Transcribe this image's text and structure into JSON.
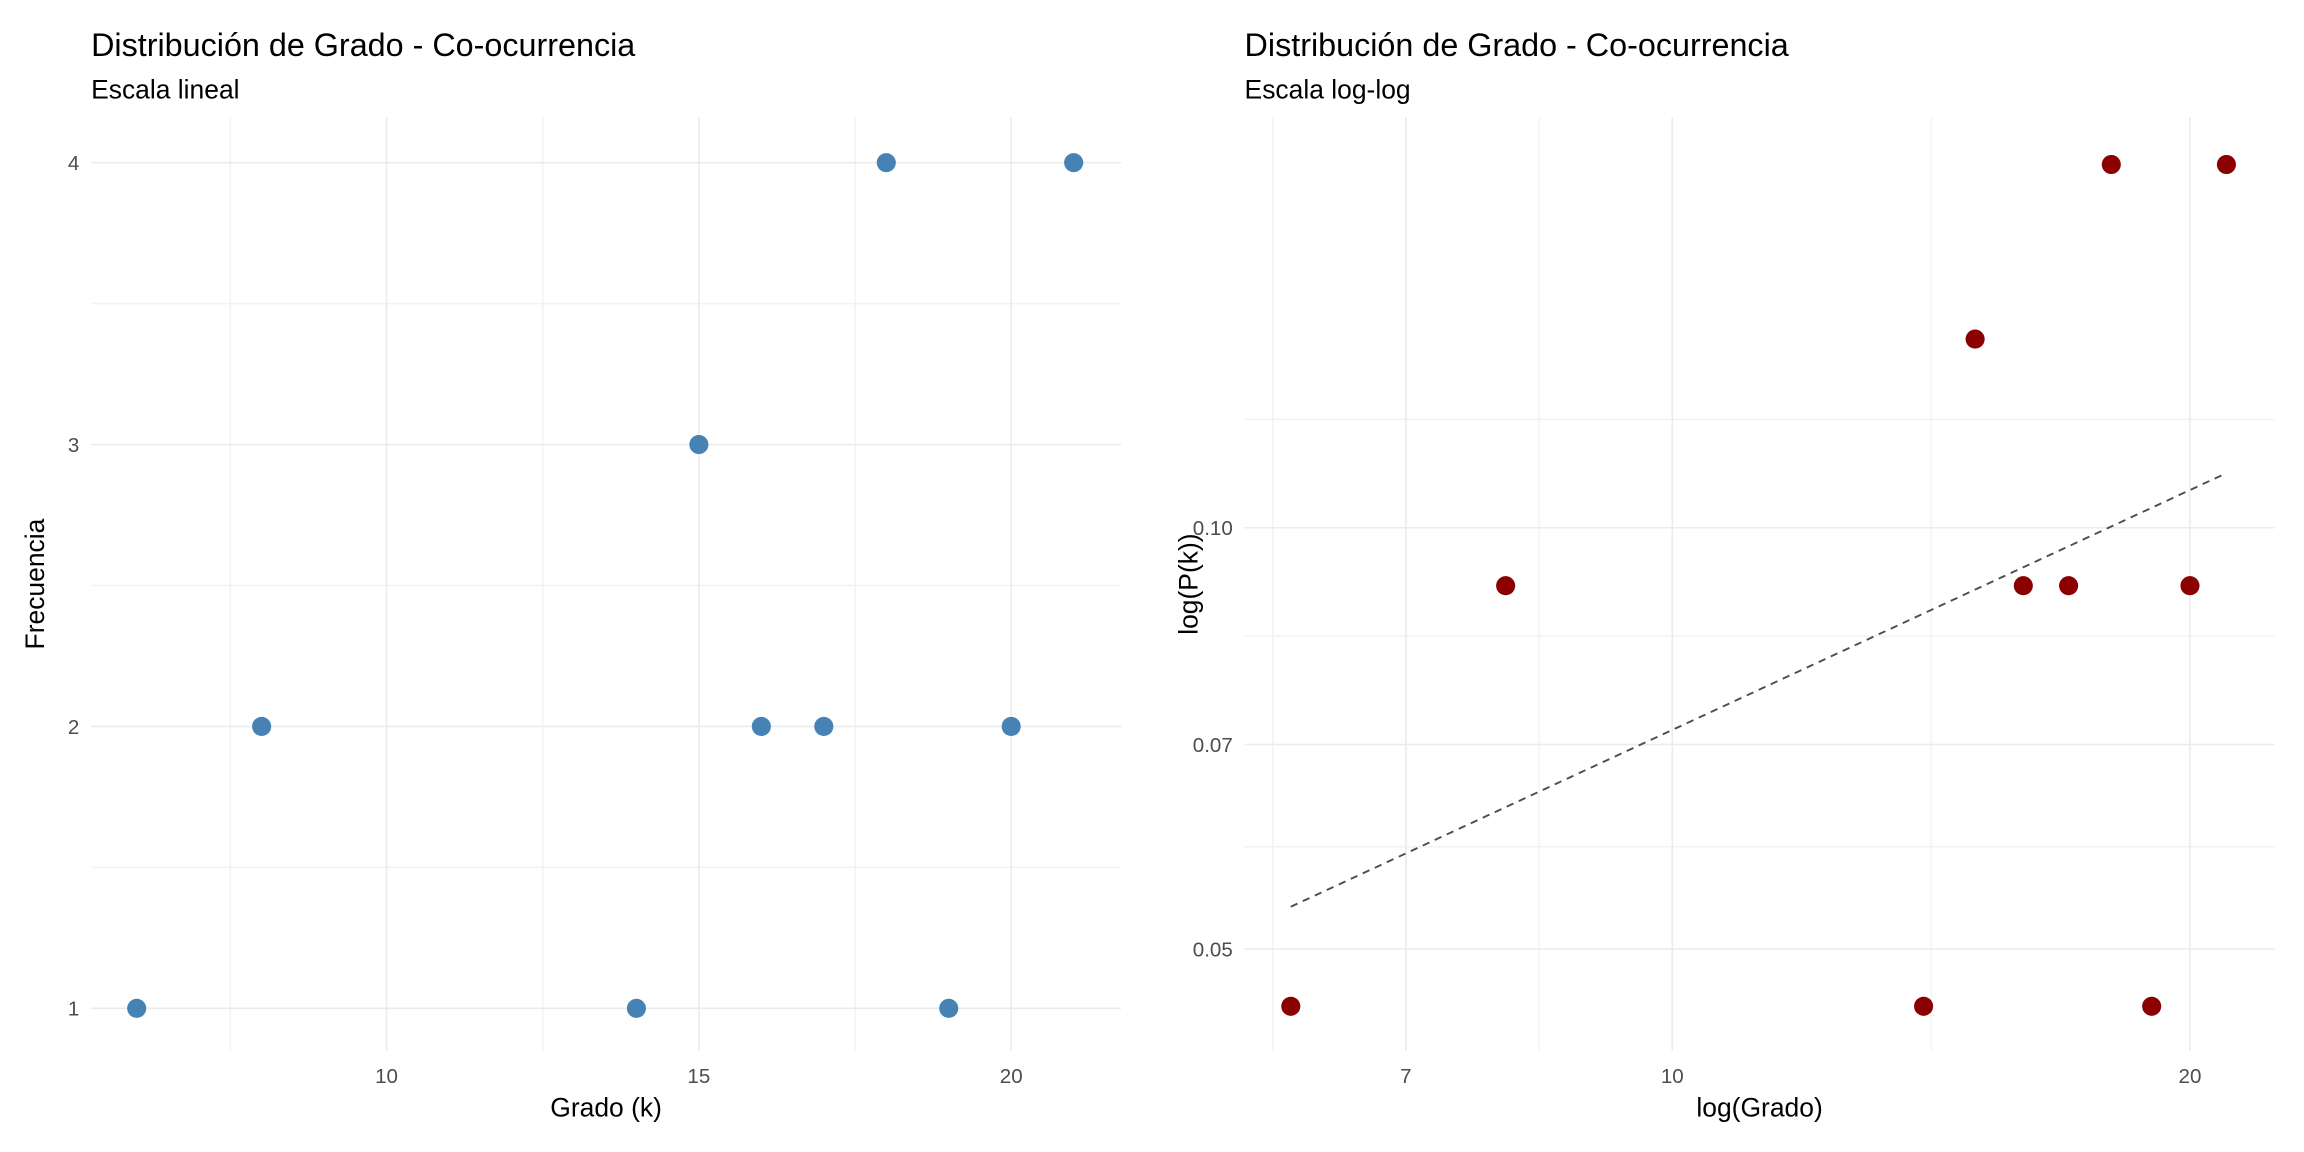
{
  "chart_data": [
    {
      "type": "scatter",
      "title": "Distribución de Grado - Co-ocurrencia",
      "subtitle": "Escala lineal",
      "x_label": "Grado (k)",
      "y_label": "Frecuencia",
      "x": [
        6,
        8,
        14,
        15,
        16,
        17,
        18,
        19,
        20,
        21
      ],
      "values": [
        1,
        2,
        1,
        3,
        2,
        2,
        4,
        1,
        2,
        4
      ],
      "color": "#4682b4",
      "xlim": [
        5.27,
        21.76
      ],
      "xticks": [
        10,
        15,
        20
      ],
      "ylim": [
        0.85,
        4.16
      ],
      "yticks": [
        1,
        2,
        3,
        4
      ],
      "xscale": "linear",
      "yscale": "linear",
      "grid": true
    },
    {
      "type": "scatter",
      "title": "Distribución de Grado - Co-ocurrencia",
      "subtitle": "Escala log-log",
      "x_label": "log(Grado)",
      "y_label": "log(P(k))",
      "x": [
        6,
        8,
        14,
        15,
        16,
        17,
        18,
        19,
        20,
        21
      ],
      "values": [
        0.0455,
        0.0909,
        0.0455,
        0.1364,
        0.0909,
        0.0909,
        0.1818,
        0.0455,
        0.0909,
        0.1818
      ],
      "color": "#8b0000",
      "fit": {
        "x": [
          6,
          21
        ],
        "values": [
          0.0536,
          0.1094
        ],
        "color": "#4d4d4d",
        "linestyle": "dashed"
      },
      "xlim": [
        5.64,
        22.4
      ],
      "xticks": [
        7,
        10,
        20
      ],
      "ylim": [
        0.0423,
        0.1964
      ],
      "yticks": [
        0.05,
        0.07,
        {
          "value": 0.1,
          "label": "0.10"
        }
      ],
      "xscale": "log",
      "yscale": "log",
      "grid": true
    }
  ]
}
